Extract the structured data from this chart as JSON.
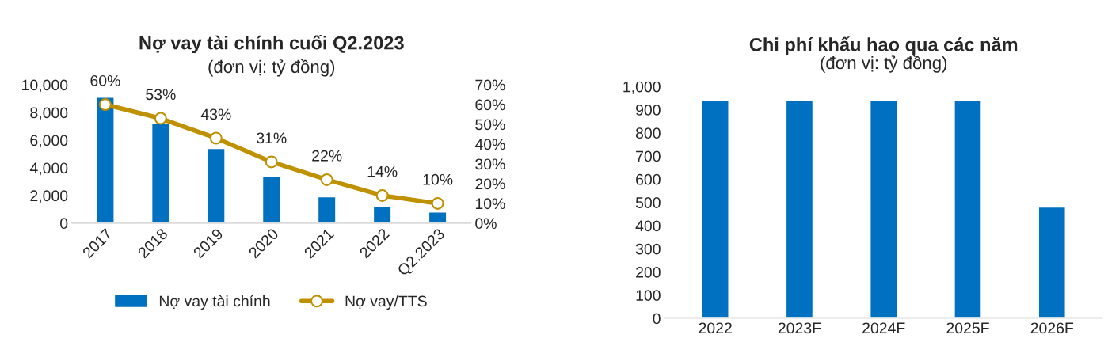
{
  "chart_data": [
    {
      "type": "bar",
      "title": "Nợ vay tài chính cuối Q2.2023",
      "subtitle": "(đơn vị: tỷ đồng)",
      "categories": [
        "2017",
        "2018",
        "2019",
        "2020",
        "2021",
        "2022",
        "Q2.2023"
      ],
      "series": [
        {
          "name": "Nợ vay tài chính",
          "color": "#0070c0",
          "values": [
            9100,
            7200,
            5400,
            3400,
            1900,
            1200,
            800
          ]
        },
        {
          "name": "Nợ vay/TTS",
          "type": "line",
          "axis": "y2",
          "color": "#bf9000",
          "marker": "circle",
          "data_labels": true,
          "value_labels": [
            "60%",
            "53%",
            "43%",
            "31%",
            "22%",
            "14%",
            "10%"
          ],
          "values": [
            60,
            53,
            43,
            31,
            22,
            14,
            10
          ]
        }
      ],
      "ylim": [
        0,
        10000
      ],
      "yticks": [
        0,
        {
          "value": 2000,
          "label": "2,000"
        },
        {
          "value": 4000,
          "label": "4,000"
        },
        {
          "value": 6000,
          "label": "6,000"
        },
        {
          "value": 8000,
          "label": "8,000"
        },
        {
          "value": 10000,
          "label": "10,000"
        }
      ],
      "y2lim": [
        0,
        70
      ],
      "y2ticks": [
        {
          "value": 0,
          "label": "0%"
        },
        {
          "value": 10,
          "label": "10%"
        },
        {
          "value": 20,
          "label": "20%"
        },
        {
          "value": 30,
          "label": "30%"
        },
        {
          "value": 40,
          "label": "40%"
        },
        {
          "value": 50,
          "label": "50%"
        },
        {
          "value": 60,
          "label": "60%"
        },
        {
          "value": 70,
          "label": "70%"
        }
      ],
      "grid": false,
      "legend": "bottom"
    },
    {
      "type": "bar",
      "title": "Chi phí khấu hao qua các năm",
      "subtitle": "(đơn vị: tỷ đồng)",
      "categories": [
        "2022",
        "2023F",
        "2024F",
        "2025F",
        "2026F"
      ],
      "values": [
        940,
        940,
        940,
        940,
        480
      ],
      "color": "#0070c0",
      "ylim": [
        0,
        1000
      ],
      "yticks": [
        0,
        100,
        200,
        300,
        400,
        500,
        600,
        700,
        800,
        900,
        {
          "value": 1000,
          "label": "1,000"
        }
      ],
      "grid": false,
      "legend": false
    }
  ]
}
